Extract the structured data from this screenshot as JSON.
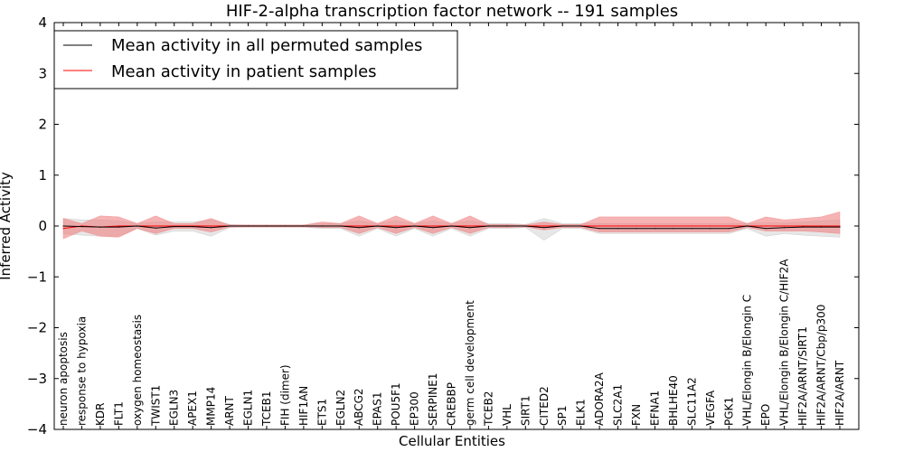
{
  "chart_data": {
    "type": "line",
    "title": "HIF-2-alpha transcription factor network -- 191 samples",
    "xlabel": "Cellular Entities",
    "ylabel": "Inferred Activity",
    "ylim": [
      -4,
      4
    ],
    "yticks": [
      -4,
      -3,
      -2,
      -1,
      0,
      1,
      2,
      3,
      4
    ],
    "ytick_labels": [
      "−4",
      "−3",
      "−2",
      "−1",
      "0",
      "1",
      "2",
      "3",
      "4"
    ],
    "legend_position": "top-left",
    "categories": [
      "neuron apoptosis",
      "response to hypoxia",
      "KDR",
      "FLT1",
      "oxygen homeostasis",
      "TWIST1",
      "EGLN3",
      "APEX1",
      "MMP14",
      "ARNT",
      "EGLN1",
      "TCEB1",
      "FIH (dimer)",
      "HIF1AN",
      "ETS1",
      "EGLN2",
      "ABCG2",
      "EPAS1",
      "POU5F1",
      "EP300",
      "SERPINE1",
      "CREBBP",
      "germ cell development",
      "TCEB2",
      "VHL",
      "SIRT1",
      "CITED2",
      "SP1",
      "ELK1",
      "ADORA2A",
      "SLC2A1",
      "FXN",
      "EFNA1",
      "BHLHE40",
      "SLC11A2",
      "VEGFA",
      "PGK1",
      "VHL/Elongin B/Elongin C",
      "EPO",
      "VHL/Elongin B/Elongin C/HIF2A",
      "HIF2A/ARNT/SIRT1",
      "HIF2A/ARNT/Cbp/p300",
      "HIF2A/ARNT"
    ],
    "series": [
      {
        "name": "Mean activity in all permuted samples",
        "color": "#000000",
        "band_color": "#bbbbbb",
        "values": [
          0.0,
          -0.01,
          -0.02,
          -0.02,
          0.0,
          -0.04,
          -0.01,
          -0.01,
          -0.03,
          0.0,
          0.0,
          0.0,
          0.0,
          0.0,
          0.0,
          0.0,
          -0.03,
          0.0,
          -0.03,
          0.0,
          -0.03,
          0.0,
          -0.03,
          0.0,
          0.0,
          0.0,
          -0.03,
          0.0,
          0.0,
          -0.05,
          -0.05,
          -0.05,
          -0.05,
          -0.05,
          -0.05,
          -0.05,
          -0.05,
          0.0,
          -0.05,
          -0.03,
          -0.02,
          -0.02,
          -0.02
        ],
        "lower": [
          -0.15,
          -0.18,
          -0.2,
          -0.2,
          -0.05,
          -0.18,
          -0.1,
          -0.1,
          -0.2,
          -0.03,
          -0.02,
          -0.02,
          -0.02,
          -0.02,
          -0.05,
          -0.05,
          -0.2,
          -0.05,
          -0.2,
          -0.05,
          -0.2,
          -0.05,
          -0.2,
          -0.05,
          -0.05,
          -0.03,
          -0.28,
          -0.05,
          -0.05,
          -0.15,
          -0.15,
          -0.15,
          -0.15,
          -0.15,
          -0.15,
          -0.15,
          -0.15,
          -0.05,
          -0.2,
          -0.15,
          -0.18,
          -0.2,
          -0.22
        ],
        "upper": [
          0.15,
          0.12,
          0.12,
          0.1,
          0.05,
          0.08,
          0.08,
          0.08,
          0.12,
          0.03,
          0.02,
          0.02,
          0.02,
          0.02,
          0.05,
          0.05,
          0.1,
          0.05,
          0.1,
          0.05,
          0.1,
          0.05,
          0.1,
          0.05,
          0.05,
          0.03,
          0.15,
          0.05,
          0.05,
          0.05,
          0.05,
          0.05,
          0.05,
          0.05,
          0.05,
          0.05,
          0.05,
          0.05,
          0.06,
          0.06,
          0.08,
          0.1,
          0.12
        ]
      },
      {
        "name": "Mean activity in patient samples",
        "color": "#ff0000",
        "band_color": "#f08080",
        "values": [
          -0.05,
          0.0,
          -0.02,
          0.0,
          0.0,
          0.0,
          0.0,
          0.0,
          0.0,
          0.0,
          0.0,
          0.0,
          0.0,
          0.0,
          0.0,
          0.0,
          0.0,
          0.0,
          0.0,
          0.0,
          0.0,
          0.0,
          0.0,
          0.0,
          0.0,
          0.0,
          0.0,
          0.0,
          0.0,
          0.0,
          0.0,
          0.0,
          0.0,
          0.0,
          0.0,
          0.0,
          0.0,
          0.0,
          0.0,
          0.0,
          0.0,
          0.0,
          0.0
        ],
        "lower": [
          -0.25,
          -0.1,
          -0.2,
          -0.22,
          -0.05,
          -0.15,
          -0.05,
          -0.05,
          -0.12,
          -0.02,
          -0.02,
          -0.02,
          -0.02,
          -0.02,
          -0.03,
          -0.03,
          -0.15,
          -0.03,
          -0.15,
          -0.03,
          -0.15,
          -0.03,
          -0.15,
          -0.03,
          -0.03,
          -0.02,
          -0.08,
          -0.03,
          -0.03,
          -0.12,
          -0.12,
          -0.12,
          -0.12,
          -0.12,
          -0.12,
          -0.12,
          -0.12,
          -0.03,
          -0.1,
          -0.1,
          -0.1,
          -0.12,
          -0.15
        ],
        "upper": [
          0.15,
          0.05,
          0.2,
          0.18,
          0.05,
          0.2,
          0.05,
          0.05,
          0.15,
          0.02,
          0.02,
          0.02,
          0.02,
          0.02,
          0.08,
          0.05,
          0.2,
          0.05,
          0.2,
          0.05,
          0.2,
          0.05,
          0.2,
          0.03,
          0.03,
          0.02,
          0.08,
          0.03,
          0.03,
          0.18,
          0.18,
          0.18,
          0.18,
          0.18,
          0.18,
          0.18,
          0.18,
          0.05,
          0.18,
          0.12,
          0.15,
          0.18,
          0.28
        ]
      }
    ]
  }
}
